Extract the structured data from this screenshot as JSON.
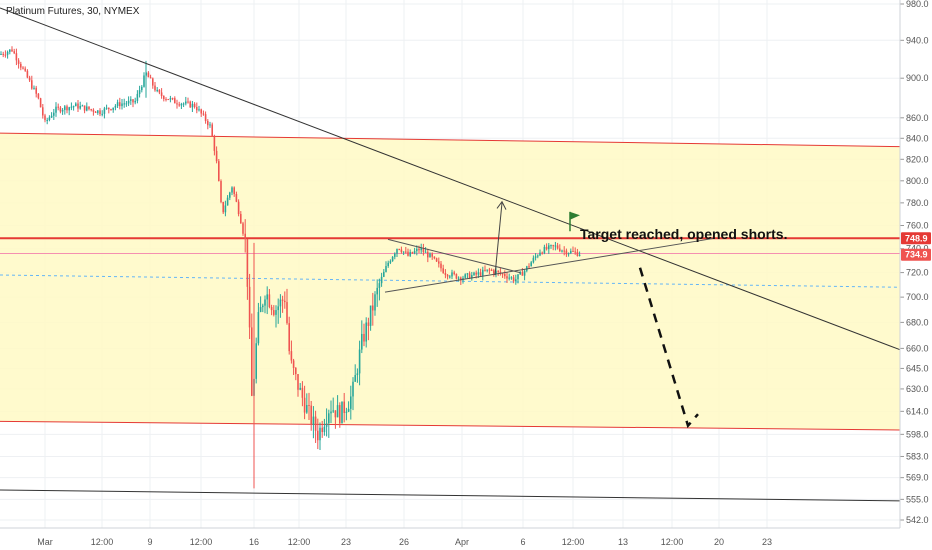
{
  "symbol_legend": "Platinum Futures, 30, NYMEX",
  "annotation": "Target reached, opened shorts.",
  "chart_data": {
    "type": "candlestick",
    "title": "Platinum Futures, 30, NYMEX",
    "y_scale": "log",
    "ylim": [
      535,
      985
    ],
    "y_ticks": [
      980.0,
      940.0,
      900.0,
      860.0,
      840.0,
      820.0,
      800.0,
      780.0,
      760.0,
      740.0,
      720.0,
      700.0,
      680.0,
      660.0,
      645.0,
      630.0,
      614.0,
      598.0,
      583.0,
      569.0,
      555.0,
      542.0
    ],
    "y_tick_labels": [
      "980.0",
      "940.0",
      "900.0",
      "860.0",
      "840.0",
      "820.0",
      "800.0",
      "780.0",
      "760.0",
      "740.0",
      "720.0",
      "700.0",
      "680.0",
      "660.0",
      "645.0",
      "630.0",
      "614.0",
      "598.0",
      "583.0",
      "569.0",
      "555.0",
      "542.0"
    ],
    "x_ticks": [
      "Mar",
      "12:00",
      "9",
      "12:00",
      "16",
      "12:00",
      "23",
      "26",
      "Apr",
      "6",
      "12:00",
      "13",
      "12:00",
      "20",
      "23"
    ],
    "price_labels": [
      {
        "value": 748.9,
        "text": "748.9",
        "color": "#e53935"
      },
      {
        "value": 734.9,
        "text": "734.9",
        "color": "#ef5350"
      }
    ],
    "candle_colors": {
      "up": "#26a69a",
      "down": "#ef5350"
    },
    "zone_color": "#fff9c4",
    "line_color_red": "#e53935",
    "grid": true,
    "legend_position": "top-left"
  }
}
